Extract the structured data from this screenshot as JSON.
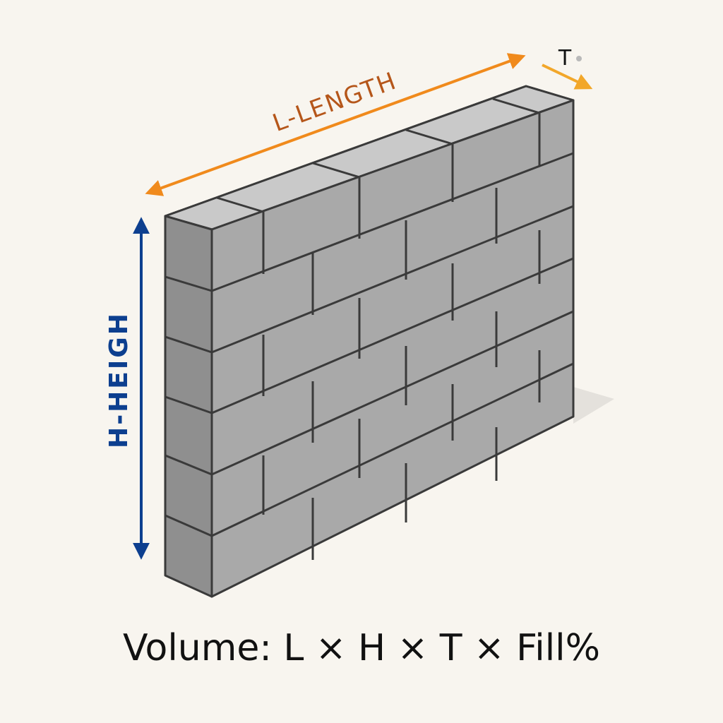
{
  "labels": {
    "length": "L-LENGTH",
    "height": "H-HEIGH",
    "thickness": "T"
  },
  "formula": "Volume: L × H × T × Fill%",
  "colors": {
    "background": "#f8f5ef",
    "length_arrow": "#f08a1c",
    "length_text": "#b5561a",
    "height_arrow": "#0d3f8f",
    "thickness_arrow": "#f2a72a",
    "block_face": "#a9a9a9",
    "block_top": "#c9c9c9",
    "block_side": "#8f8f8f",
    "mortar": "#3a3a3a"
  },
  "wall": {
    "courses": 6,
    "material": "concrete-block"
  }
}
